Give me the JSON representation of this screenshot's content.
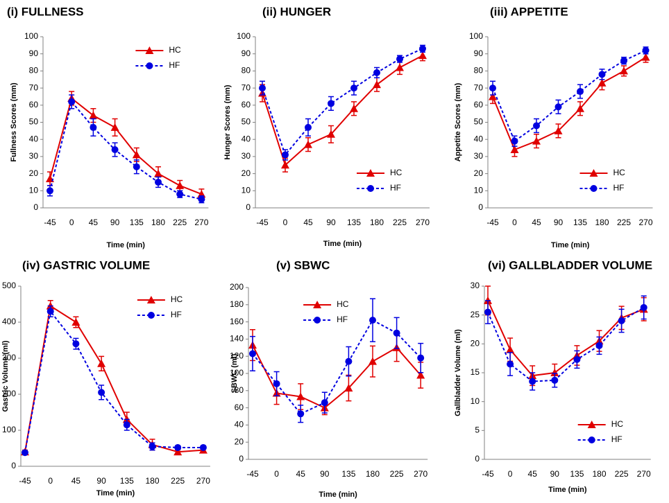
{
  "chart_data": [
    {
      "type": "line",
      "title": "(i) FULLNESS",
      "x_label": "Time (min)",
      "y_label": "Fullness Scores (mm)",
      "categories": [
        "-45",
        "0",
        "45",
        "90",
        "135",
        "180",
        "225",
        "270"
      ],
      "ylim": [
        0,
        100
      ],
      "yticks": [
        0,
        10,
        20,
        30,
        40,
        50,
        60,
        70,
        80,
        90,
        100
      ],
      "grid": false,
      "legend": "upper right",
      "series": [
        {
          "name": "HC",
          "color": "#e00000",
          "marker": "triangle",
          "linestyle": "solid",
          "values": [
            17,
            64,
            54,
            47,
            31,
            20,
            13,
            8
          ],
          "errors": [
            4,
            4,
            4,
            5,
            4,
            4,
            3,
            3
          ]
        },
        {
          "name": "HF",
          "color": "#0000e0",
          "marker": "circle",
          "linestyle": "dashed",
          "values": [
            10,
            62,
            47,
            34,
            24,
            15,
            8,
            5
          ],
          "errors": [
            3,
            4,
            5,
            4,
            4,
            3,
            2,
            2
          ]
        }
      ]
    },
    {
      "type": "line",
      "title": "(ii) HUNGER",
      "x_label": "Time (min)",
      "y_label": "Hunger Scores (mm)",
      "categories": [
        "-45",
        "0",
        "45",
        "90",
        "135",
        "180",
        "225",
        "270"
      ],
      "ylim": [
        0,
        100
      ],
      "yticks": [
        0,
        10,
        20,
        30,
        40,
        50,
        60,
        70,
        80,
        90,
        100
      ],
      "grid": false,
      "legend": "lower right",
      "series": [
        {
          "name": "HC",
          "color": "#e00000",
          "marker": "triangle",
          "linestyle": "solid",
          "values": [
            67,
            25,
            37,
            43,
            58,
            72,
            82,
            89
          ],
          "errors": [
            5,
            4,
            4,
            5,
            4,
            4,
            4,
            3
          ]
        },
        {
          "name": "HF",
          "color": "#0000e0",
          "marker": "circle",
          "linestyle": "dashed",
          "values": [
            70,
            31,
            47,
            61,
            70,
            79,
            87,
            93
          ],
          "errors": [
            4,
            3,
            5,
            4,
            4,
            3,
            2,
            2
          ]
        }
      ]
    },
    {
      "type": "line",
      "title": "(iii) APPETITE",
      "x_label": "Time (min)",
      "y_label": "Appetite Scores (mm)",
      "categories": [
        "-45",
        "0",
        "45",
        "90",
        "135",
        "180",
        "225",
        "270"
      ],
      "ylim": [
        0,
        100
      ],
      "yticks": [
        0,
        10,
        20,
        30,
        40,
        50,
        60,
        70,
        80,
        90,
        100
      ],
      "grid": false,
      "legend": "lower right",
      "series": [
        {
          "name": "HC",
          "color": "#e00000",
          "marker": "triangle",
          "linestyle": "solid",
          "values": [
            65,
            34,
            39,
            45,
            58,
            73,
            80,
            88
          ],
          "errors": [
            4,
            4,
            4,
            4,
            4,
            4,
            3,
            3
          ]
        },
        {
          "name": "HF",
          "color": "#0000e0",
          "marker": "circle",
          "linestyle": "dashed",
          "values": [
            70,
            39,
            48,
            59,
            68,
            78,
            86,
            92
          ],
          "errors": [
            4,
            3,
            4,
            4,
            4,
            3,
            2,
            2
          ]
        }
      ]
    },
    {
      "type": "line",
      "title": "(iv) GASTRIC VOLUME",
      "x_label": "Time (min)",
      "y_label": "Gastric Volume (ml)",
      "categories": [
        "-45",
        "0",
        "45",
        "90",
        "135",
        "180",
        "225",
        "270"
      ],
      "ylim": [
        0,
        500
      ],
      "yticks": [
        0,
        100,
        200,
        300,
        400,
        500
      ],
      "grid": false,
      "legend": "upper right",
      "series": [
        {
          "name": "HC",
          "color": "#e00000",
          "marker": "triangle",
          "linestyle": "solid",
          "values": [
            40,
            445,
            400,
            285,
            130,
            60,
            40,
            45
          ],
          "errors": [
            5,
            15,
            15,
            20,
            20,
            15,
            5,
            8
          ]
        },
        {
          "name": "HF",
          "color": "#0000e0",
          "marker": "circle",
          "linestyle": "dashed",
          "values": [
            38,
            430,
            340,
            205,
            115,
            55,
            52,
            52
          ],
          "errors": [
            5,
            15,
            15,
            20,
            15,
            10,
            5,
            5
          ]
        }
      ]
    },
    {
      "type": "line",
      "title": "(v) SBWC",
      "x_label": "Time (min)",
      "y_label": "SBWC (ml)",
      "categories": [
        "-45",
        "0",
        "45",
        "90",
        "135",
        "180",
        "225",
        "270"
      ],
      "ylim": [
        0,
        200
      ],
      "yticks": [
        0,
        20,
        40,
        60,
        80,
        100,
        120,
        140,
        160,
        180,
        200
      ],
      "grid": false,
      "legend": "upper center",
      "series": [
        {
          "name": "HC",
          "color": "#e00000",
          "marker": "triangle",
          "linestyle": "solid",
          "values": [
            133,
            77,
            73,
            60,
            83,
            114,
            130,
            98
          ],
          "errors": [
            18,
            13,
            15,
            8,
            15,
            18,
            16,
            15
          ]
        },
        {
          "name": "HF",
          "color": "#0000e0",
          "marker": "circle",
          "linestyle": "dashed",
          "values": [
            123,
            88,
            53,
            66,
            114,
            162,
            147,
            118
          ],
          "errors": [
            20,
            14,
            10,
            12,
            17,
            25,
            18,
            17
          ]
        }
      ]
    },
    {
      "type": "line",
      "title": "(vi) GALLBLADDER VOLUME",
      "x_label": "Time (min)",
      "y_label": "Gallbladder Volume (ml)",
      "categories": [
        "-45",
        "0",
        "45",
        "90",
        "135",
        "180",
        "225",
        "270"
      ],
      "ylim": [
        0,
        30
      ],
      "yticks": [
        0,
        5,
        10,
        15,
        20,
        25,
        30
      ],
      "grid": false,
      "legend": "lower right",
      "series": [
        {
          "name": "HC",
          "color": "#e00000",
          "marker": "triangle",
          "linestyle": "solid",
          "values": [
            27.5,
            19,
            14.5,
            15,
            18,
            20.5,
            24.5,
            26
          ],
          "errors": [
            2.5,
            2,
            1.7,
            1.5,
            1.7,
            1.8,
            2,
            2
          ]
        },
        {
          "name": "HF",
          "color": "#0000e0",
          "marker": "circle",
          "linestyle": "dashed",
          "values": [
            25.5,
            16.5,
            13.5,
            13.7,
            17.3,
            19.7,
            24,
            26.3
          ],
          "errors": [
            2,
            2,
            1.5,
            1.2,
            1.5,
            1.5,
            2,
            2
          ]
        }
      ]
    }
  ]
}
